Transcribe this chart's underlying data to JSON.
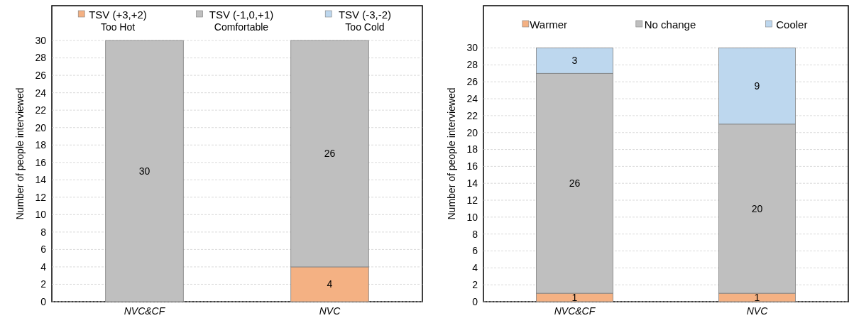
{
  "chart_data": [
    {
      "type": "bar",
      "stacked": true,
      "categories": [
        "NVC&CF",
        "NVC"
      ],
      "ylabel": "Number of people interviewed",
      "ylim": [
        0,
        34
      ],
      "yticks": [
        0,
        2,
        4,
        6,
        8,
        10,
        12,
        14,
        16,
        18,
        20,
        22,
        24,
        26,
        28,
        30
      ],
      "grid": "y",
      "legend": "top",
      "series": [
        {
          "name": "TSV (+3,+2)\nToo Hot",
          "color": "#f4b183",
          "values": [
            0,
            4
          ],
          "value_labels": [
            null,
            "4"
          ]
        },
        {
          "name": "TSV (-1,0,+1)\nComfortable",
          "color": "#bfbfbf",
          "values": [
            30,
            26
          ],
          "value_labels": [
            "30",
            "26"
          ]
        },
        {
          "name": "TSV (-3,-2)\nToo Cold",
          "color": "#bdd7ee",
          "values": [
            0,
            0
          ],
          "value_labels": [
            null,
            null
          ]
        }
      ]
    },
    {
      "type": "bar",
      "stacked": true,
      "categories": [
        "NVC&CF",
        "NVC"
      ],
      "ylabel": "Number of people interviewed",
      "ylim": [
        0,
        35
      ],
      "yticks": [
        0,
        2,
        4,
        6,
        8,
        10,
        12,
        14,
        16,
        18,
        20,
        22,
        24,
        26,
        28,
        30
      ],
      "grid": "y",
      "legend": "top",
      "data_labels": true,
      "series": [
        {
          "name": "Warmer",
          "color": "#f4b183",
          "values": [
            1,
            1
          ]
        },
        {
          "name": "No change",
          "color": "#bfbfbf",
          "values": [
            26,
            20
          ]
        },
        {
          "name": "Cooler",
          "color": "#bdd7ee",
          "values": [
            3,
            9
          ]
        }
      ]
    }
  ]
}
